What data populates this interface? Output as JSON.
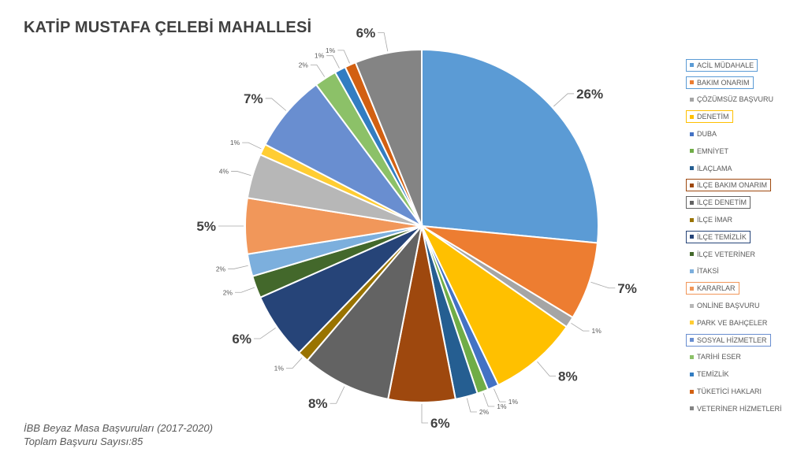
{
  "title": "KATİP MUSTAFA ÇELEBİ MAHALLESİ",
  "footer": {
    "line1": "İBB Beyaz Masa Başvuruları (2017-2020)",
    "line2": "Toplam Başvuru Sayısı:85"
  },
  "chart_data": {
    "type": "pie",
    "title": "KATİP MUSTAFA ÇELEBİ MAHALLESİ",
    "legend_position": "right",
    "slices": [
      {
        "label": "26%",
        "value": 26,
        "color": "#5B9BD5",
        "big": true
      },
      {
        "label": "7%",
        "value": 7,
        "color": "#ED7D31",
        "big": true
      },
      {
        "label": "1%",
        "value": 1,
        "color": "#A5A5A5",
        "big": false
      },
      {
        "label": "8%",
        "value": 8,
        "color": "#FFC000",
        "big": true
      },
      {
        "label": "1%",
        "value": 1,
        "color": "#4472C4",
        "big": false
      },
      {
        "label": "1%",
        "value": 1,
        "color": "#70AD47",
        "big": false
      },
      {
        "label": "2%",
        "value": 2,
        "color": "#255E91",
        "big": false
      },
      {
        "label": "6%",
        "value": 6,
        "color": "#9E480E",
        "big": true
      },
      {
        "label": "8%",
        "value": 8,
        "color": "#636363",
        "big": true
      },
      {
        "label": "1%",
        "value": 1,
        "color": "#997300",
        "big": false
      },
      {
        "label": "6%",
        "value": 6,
        "color": "#264478",
        "big": true
      },
      {
        "label": "2%",
        "value": 2,
        "color": "#43682B",
        "big": false
      },
      {
        "label": "2%",
        "value": 2,
        "color": "#7CAFDD",
        "big": false
      },
      {
        "label": "5%",
        "value": 5,
        "color": "#F1975A",
        "big": true
      },
      {
        "label": "4%",
        "value": 4,
        "color": "#B7B7B7",
        "big": false
      },
      {
        "label": "1%",
        "value": 1,
        "color": "#FFCD33",
        "big": false
      },
      {
        "label": "7%",
        "value": 7,
        "color": "#698ED0",
        "big": true
      },
      {
        "label": "2%",
        "value": 2,
        "color": "#8CC168",
        "big": false
      },
      {
        "label": "1%",
        "value": 1,
        "color": "#327DC2",
        "big": false
      },
      {
        "label": "1%",
        "value": 1,
        "color": "#D26012",
        "big": false
      },
      {
        "label": "6%",
        "value": 6,
        "color": "#848484",
        "big": true
      }
    ]
  },
  "legend": {
    "items": [
      {
        "label": "ACİL MÜDAHALE",
        "color": "#5B9BD5",
        "border": "#5B9BD5"
      },
      {
        "label": "BAKIM ONARIM",
        "color": "#ED7D31",
        "border": "#5B9BD5"
      },
      {
        "label": "ÇÖZÜMSÜZ BAŞVURU",
        "color": "#A5A5A5",
        "border": ""
      },
      {
        "label": "DENETİM",
        "color": "#FFC000",
        "border": "#FFC000"
      },
      {
        "label": "DUBA",
        "color": "#4472C4",
        "border": ""
      },
      {
        "label": "EMNİYET",
        "color": "#70AD47",
        "border": ""
      },
      {
        "label": "İLAÇLAMA",
        "color": "#255E91",
        "border": ""
      },
      {
        "label": "İLÇE BAKIM ONARIM",
        "color": "#9E480E",
        "border": "#9E480E"
      },
      {
        "label": "İLÇE DENETİM",
        "color": "#636363",
        "border": "#636363"
      },
      {
        "label": "İLÇE İMAR",
        "color": "#997300",
        "border": ""
      },
      {
        "label": "İLÇE TEMİZLİK",
        "color": "#264478",
        "border": "#264478"
      },
      {
        "label": "İLÇE VETERİNER",
        "color": "#43682B",
        "border": ""
      },
      {
        "label": "İTAKSİ",
        "color": "#7CAFDD",
        "border": ""
      },
      {
        "label": "KARARLAR",
        "color": "#F1975A",
        "border": "#F1975A"
      },
      {
        "label": "ONLİNE BAŞVURU",
        "color": "#B7B7B7",
        "border": ""
      },
      {
        "label": "PARK VE BAHÇELER",
        "color": "#FFCD33",
        "border": ""
      },
      {
        "label": "SOSYAL HİZMETLER",
        "color": "#698ED0",
        "border": "#698ED0"
      },
      {
        "label": "TARİHİ ESER",
        "color": "#8CC168",
        "border": ""
      },
      {
        "label": "TEMİZLİK",
        "color": "#327DC2",
        "border": ""
      },
      {
        "label": "TÜKETİCİ HAKLARI",
        "color": "#D26012",
        "border": ""
      },
      {
        "label": "VETERİNER HİZMETLERİ",
        "color": "#848484",
        "border": ""
      }
    ]
  }
}
